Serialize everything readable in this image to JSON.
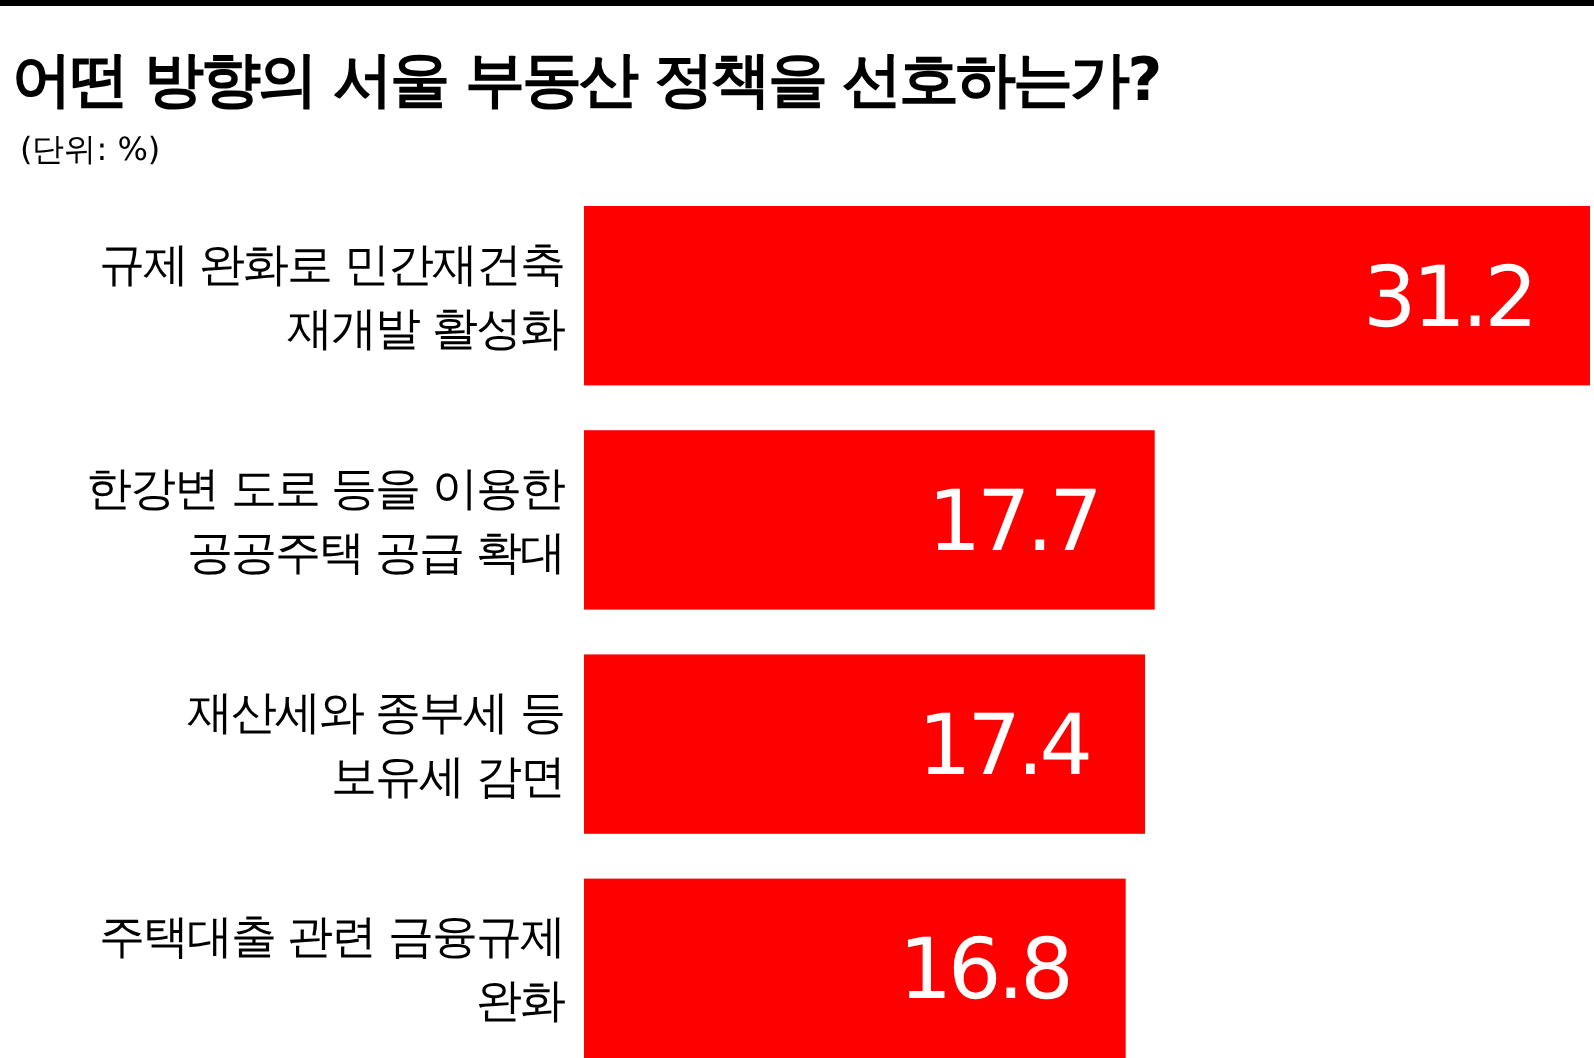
{
  "chart_data": {
    "type": "bar",
    "orientation": "horizontal",
    "title": "어떤 방향의 서울 부동산 정책을 선호하는가?",
    "subtitle": "(단위: %)",
    "categories": [
      "규제 완화로 민간재건축\n재개발 활성화",
      "한강변 도로 등을 이용한\n공공주택 공급 확대",
      "재산세와 종부세 등\n보유세 감면",
      "주택대출 관련 금융규제\n완화"
    ],
    "values": [
      31.2,
      17.7,
      17.4,
      16.8
    ],
    "color": "#ff0000",
    "data_labels": true
  }
}
